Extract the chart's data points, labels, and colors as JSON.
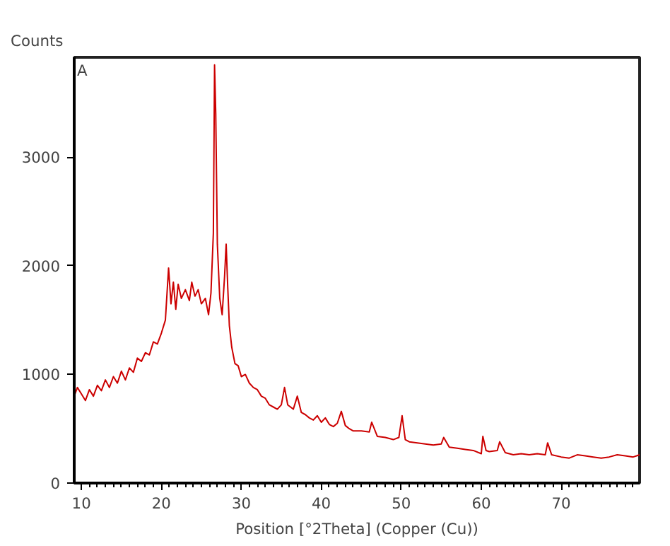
{
  "chart_data": {
    "type": "line",
    "xlabel": "Position [°2Theta] (Copper (Cu))",
    "ylabel": "Counts",
    "annotations": [
      "A"
    ],
    "x": [
      9.1,
      9.5,
      10,
      10.5,
      11,
      11.5,
      12,
      12.5,
      13,
      13.5,
      14,
      14.5,
      15,
      15.5,
      16,
      16.5,
      17,
      17.5,
      18,
      18.5,
      19,
      19.5,
      20,
      20.5,
      20.9,
      21.2,
      21.5,
      21.8,
      22.1,
      22.5,
      23,
      23.5,
      23.8,
      24.2,
      24.6,
      25,
      25.5,
      25.9,
      26.2,
      26.5,
      26.65,
      26.8,
      27.0,
      27.3,
      27.6,
      27.9,
      28.1,
      28.3,
      28.5,
      28.8,
      29.2,
      29.6,
      30,
      30.5,
      31,
      31.5,
      32,
      32.5,
      33,
      33.5,
      34,
      34.5,
      35,
      35.4,
      35.8,
      36.5,
      37,
      37.5,
      38,
      38.5,
      39,
      39.5,
      40,
      40.5,
      41,
      41.5,
      42,
      42.5,
      43,
      43.5,
      44,
      45,
      46,
      46.3,
      47,
      48,
      49,
      49.7,
      50.1,
      50.5,
      51,
      52,
      53,
      54,
      55,
      55.3,
      56,
      57,
      58,
      59,
      60,
      60.2,
      60.6,
      61,
      62,
      62.3,
      63,
      64,
      65,
      66,
      67,
      68,
      68.3,
      68.8,
      70,
      71,
      72,
      73,
      74,
      75,
      76,
      77,
      78,
      79,
      79.8
    ],
    "series": [
      {
        "color": "#cc0000",
        "values": [
          800,
          880,
          820,
          760,
          860,
          800,
          900,
          850,
          950,
          880,
          980,
          920,
          1030,
          950,
          1060,
          1020,
          1150,
          1120,
          1200,
          1180,
          1300,
          1280,
          1380,
          1500,
          1980,
          1650,
          1850,
          1600,
          1830,
          1700,
          1780,
          1680,
          1850,
          1720,
          1780,
          1650,
          1700,
          1550,
          1750,
          2300,
          3850,
          3400,
          2200,
          1700,
          1550,
          1900,
          2200,
          1800,
          1450,
          1250,
          1100,
          1080,
          980,
          1000,
          920,
          880,
          860,
          800,
          780,
          720,
          700,
          680,
          720,
          880,
          720,
          680,
          800,
          650,
          630,
          600,
          580,
          620,
          560,
          600,
          540,
          520,
          550,
          660,
          530,
          500,
          480,
          480,
          470,
          560,
          430,
          420,
          400,
          420,
          620,
          400,
          380,
          370,
          360,
          350,
          360,
          420,
          330,
          320,
          310,
          300,
          270,
          430,
          300,
          290,
          300,
          380,
          280,
          260,
          270,
          260,
          270,
          260,
          370,
          260,
          240,
          230,
          260,
          250,
          240,
          230,
          240,
          260,
          250,
          240,
          260
        ]
      }
    ],
    "xlim": [
      9.1,
      79.8
    ],
    "ylim": [
      0,
      3920
    ],
    "xticks": [
      10,
      {
        "value": 11,
        "label": null
      },
      {
        "value": 12,
        "label": null
      },
      {
        "value": 13,
        "label": null
      },
      {
        "value": 14,
        "label": null
      },
      {
        "value": 15,
        "label": null
      },
      {
        "value": 16,
        "label": null
      },
      {
        "value": 17,
        "label": null
      },
      {
        "value": 18,
        "label": null
      },
      {
        "value": 19,
        "label": null
      },
      20,
      {
        "value": 21,
        "label": null
      },
      {
        "value": 22,
        "label": null
      },
      {
        "value": 23,
        "label": null
      },
      {
        "value": 24,
        "label": null
      },
      {
        "value": 25,
        "label": null
      },
      {
        "value": 26,
        "label": null
      },
      {
        "value": 27,
        "label": null
      },
      {
        "value": 28,
        "label": null
      },
      {
        "value": 29,
        "label": null
      },
      30,
      {
        "value": 31,
        "label": null
      },
      {
        "value": 32,
        "label": null
      },
      {
        "value": 33,
        "label": null
      },
      {
        "value": 34,
        "label": null
      },
      {
        "value": 35,
        "label": null
      },
      {
        "value": 36,
        "label": null
      },
      {
        "value": 37,
        "label": null
      },
      {
        "value": 38,
        "label": null
      },
      {
        "value": 39,
        "label": null
      },
      40,
      {
        "value": 41,
        "label": null
      },
      {
        "value": 42,
        "label": null
      },
      {
        "value": 43,
        "label": null
      },
      {
        "value": 44,
        "label": null
      },
      {
        "value": 45,
        "label": null
      },
      {
        "value": 46,
        "label": null
      },
      {
        "value": 47,
        "label": null
      },
      {
        "value": 48,
        "label": null
      },
      {
        "value": 49,
        "label": null
      },
      50,
      {
        "value": 51,
        "label": null
      },
      {
        "value": 52,
        "label": null
      },
      {
        "value": 53,
        "label": null
      },
      {
        "value": 54,
        "label": null
      },
      {
        "value": 55,
        "label": null
      },
      {
        "value": 56,
        "label": null
      },
      {
        "value": 57,
        "label": null
      },
      {
        "value": 58,
        "label": null
      },
      {
        "value": 59,
        "label": null
      },
      60,
      {
        "value": 61,
        "label": null
      },
      {
        "value": 62,
        "label": null
      },
      {
        "value": 63,
        "label": null
      },
      {
        "value": 64,
        "label": null
      },
      {
        "value": 65,
        "label": null
      },
      {
        "value": 66,
        "label": null
      },
      {
        "value": 67,
        "label": null
      },
      {
        "value": 68,
        "label": null
      },
      {
        "value": 69,
        "label": null
      },
      70,
      {
        "value": 71,
        "label": null
      },
      {
        "value": 72,
        "label": null
      },
      {
        "value": 73,
        "label": null
      },
      {
        "value": 74,
        "label": null
      },
      {
        "value": 75,
        "label": null
      },
      {
        "value": 76,
        "label": null
      },
      {
        "value": 77,
        "label": null
      },
      {
        "value": 78,
        "label": null
      },
      {
        "value": 79,
        "label": null
      }
    ],
    "yticks": [
      0,
      1000,
      2000,
      3000
    ],
    "grid": false
  }
}
